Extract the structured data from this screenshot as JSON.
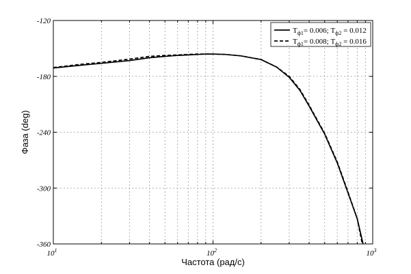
{
  "chart_data": {
    "type": "line",
    "xlabel": "Частота (рад/с)",
    "ylabel": "Фаза (deg)",
    "x_scale": "log",
    "xlim": [
      10,
      1000
    ],
    "ylim": [
      -360,
      -120
    ],
    "grid": true,
    "legend_position": "top-right",
    "x_ticks": [
      {
        "value": 10,
        "base": "10",
        "exp": "1"
      },
      {
        "value": 100,
        "base": "10",
        "exp": "2"
      },
      {
        "value": 1000,
        "base": "10",
        "exp": "3"
      }
    ],
    "y_ticks": [
      -120,
      -180,
      -240,
      -300,
      -360
    ],
    "series": [
      {
        "name": "Tф1= 0.006; Tф2 = 0.012",
        "legend_parts": {
          "sym1": "T",
          "sub1": "ф1",
          "val1": "= 0.006; ",
          "sym2": "T",
          "sub2": "ф2",
          "val2": " = 0.012"
        },
        "style": "solid",
        "color": "#000000",
        "x": [
          10,
          15,
          20,
          30,
          40,
          50,
          60,
          70,
          80,
          90,
          100,
          120,
          150,
          200,
          250,
          300,
          350,
          400,
          500,
          600,
          700,
          800,
          870
        ],
        "y": [
          -171,
          -168,
          -166,
          -163,
          -160,
          -158.5,
          -157.5,
          -157,
          -156.5,
          -156,
          -156,
          -156.5,
          -158,
          -162,
          -170,
          -181,
          -195,
          -212,
          -242,
          -273,
          -305,
          -333,
          -360
        ]
      },
      {
        "name": "Tф1= 0.008; Tф2 = 0.016",
        "legend_parts": {
          "sym1": "T",
          "sub1": "ф1",
          "val1": "= 0.008; ",
          "sym2": "T",
          "sub2": "ф2",
          "val2": " = 0.016"
        },
        "style": "dashed",
        "color": "#000000",
        "x": [
          10,
          15,
          20,
          30,
          40,
          50,
          60,
          70,
          80,
          90,
          100,
          120,
          150,
          200,
          250,
          300,
          350,
          400,
          500,
          600,
          700,
          800,
          860
        ],
        "y": [
          -170.5,
          -167,
          -165,
          -161.5,
          -158.5,
          -157.5,
          -157,
          -156.5,
          -156,
          -156,
          -156,
          -156.5,
          -158,
          -162,
          -170,
          -180,
          -194,
          -211,
          -241,
          -272,
          -304,
          -333,
          -360
        ]
      }
    ]
  }
}
